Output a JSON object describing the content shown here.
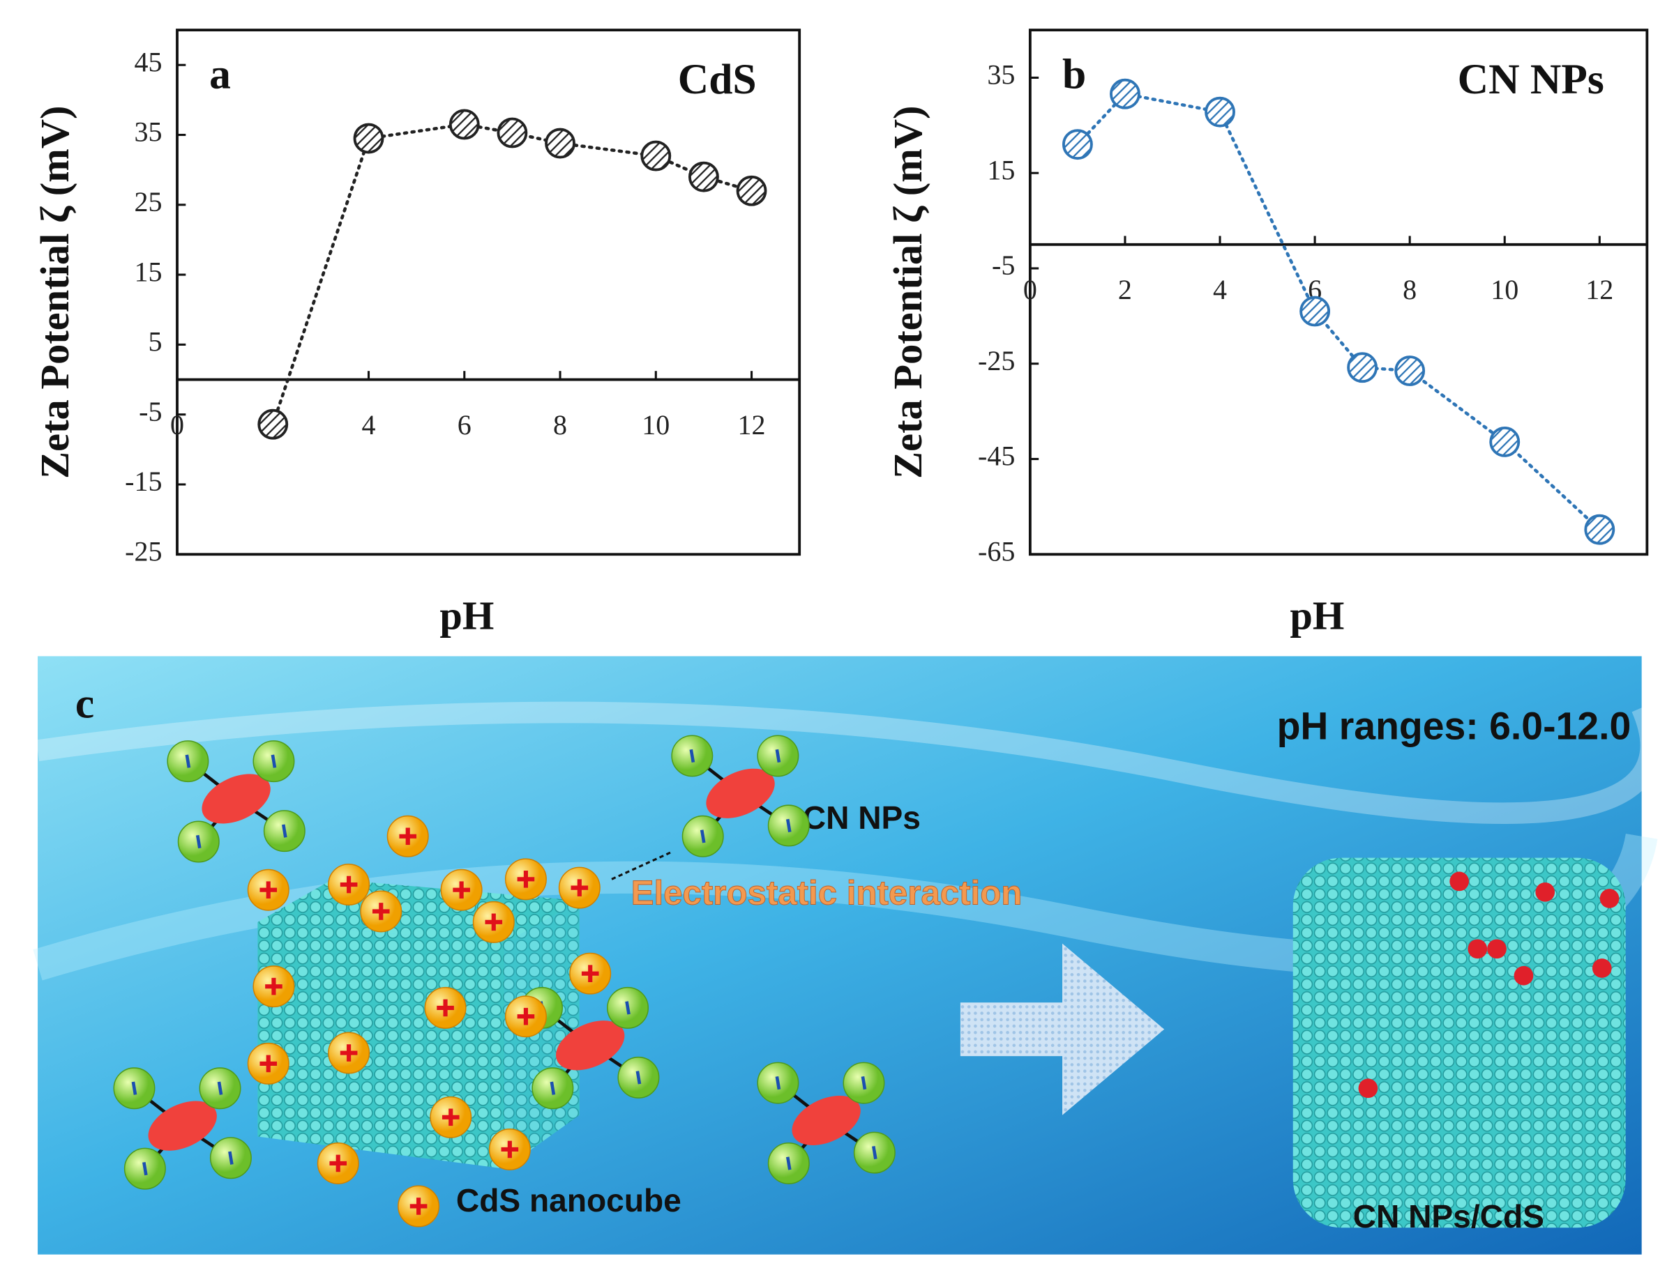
{
  "chart_data": [
    {
      "type": "line",
      "panel_label": "a",
      "title": "CdS",
      "xlabel": "pH",
      "ylabel": "Zeta Potential ζ (mV)",
      "x": [
        2,
        4,
        6,
        7,
        8,
        10,
        11,
        12
      ],
      "values": [
        -6.4,
        34.5,
        36.5,
        35.3,
        33.8,
        32,
        29,
        27
      ],
      "color": "#222222",
      "xlim": [
        0,
        13
      ],
      "ylim": [
        -25,
        50
      ],
      "xticks": [
        0,
        4,
        6,
        8,
        10,
        12
      ],
      "yticks": [
        -25,
        -15,
        -5,
        5,
        15,
        25,
        35,
        45
      ]
    },
    {
      "type": "line",
      "panel_label": "b",
      "title": "CN NPs",
      "xlabel": "pH",
      "ylabel": "Zeta Potential ζ (mV)",
      "x": [
        1,
        2,
        4,
        6,
        7,
        8,
        10,
        12
      ],
      "values": [
        21,
        31.6,
        27.8,
        -14,
        -25.8,
        -26.5,
        -41.4,
        -59.8
      ],
      "color": "#2e75b6",
      "xlim": [
        0,
        13
      ],
      "ylim": [
        -65,
        45
      ],
      "xticks": [
        0,
        2,
        4,
        6,
        8,
        10,
        12
      ],
      "yticks": [
        -65,
        -45,
        -25,
        -5,
        15,
        35
      ]
    }
  ],
  "illustration": {
    "panel_label": "c",
    "condition": "pH ranges: 6.0-12.0",
    "particle_label": "CN NPs",
    "interaction_label": "Electrostatic interaction",
    "cube_label": "CdS nanocube",
    "product_label": "CN NPs/CdS"
  }
}
